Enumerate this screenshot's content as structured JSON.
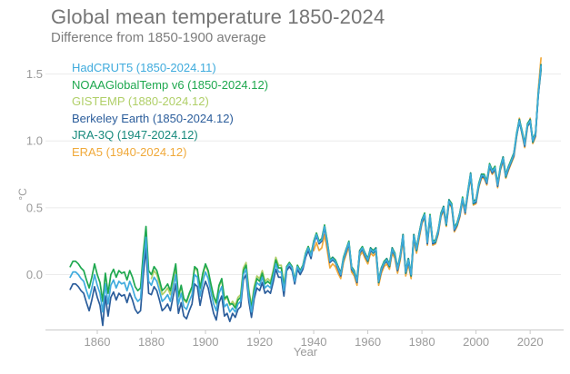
{
  "header": {
    "title": "Global mean temperature 1850-2024",
    "subtitle": "Difference from 1850-1900 average"
  },
  "colors": {
    "background": "#ffffff",
    "title_text": "#757575",
    "axis_text": "#9b9b9b",
    "gridline": "#ebebeb",
    "axis_line": "#c9c9c9"
  },
  "chart_data": {
    "type": "line",
    "title": "Global mean temperature 1850-2024",
    "subtitle": "Difference from 1850-1900 average",
    "xlabel": "Year",
    "ylabel": "°C",
    "grid": "horizontal",
    "legend_position": "top-left",
    "xlim": [
      1850,
      2024
    ],
    "ylim": [
      -0.42,
      1.65
    ],
    "x_ticks": [
      1860,
      1880,
      1900,
      1920,
      1940,
      1960,
      1980,
      2000,
      2020
    ],
    "y_ticks": [
      {
        "label": "0.0",
        "value": 0.0
      },
      {
        "label": "0.5",
        "value": 0.5
      },
      {
        "label": "1.0",
        "value": 1.0
      },
      {
        "label": "1.5",
        "value": 1.5
      }
    ],
    "draw_order": [
      "ERA5",
      "GISTEMP",
      "Berkeley Earth",
      "NOAAGlobalTemp v6",
      "JRA-3Q",
      "HadCRUT5"
    ],
    "series": [
      {
        "name": "HadCRUT5",
        "legend": "HadCRUT5 (1850-2024.11)",
        "color": "#3fabdd",
        "start_year": 1850,
        "values": [
          -0.02,
          0.02,
          0.02,
          0.0,
          -0.03,
          -0.05,
          -0.12,
          -0.18,
          -0.1,
          0.0,
          -0.08,
          -0.14,
          -0.28,
          -0.07,
          -0.22,
          -0.08,
          -0.04,
          -0.1,
          -0.05,
          -0.07,
          -0.06,
          -0.12,
          -0.05,
          -0.1,
          -0.17,
          -0.2,
          -0.18,
          0.08,
          0.28,
          -0.05,
          -0.08,
          -0.02,
          -0.05,
          -0.12,
          -0.2,
          -0.18,
          -0.15,
          -0.2,
          -0.1,
          0.0,
          -0.22,
          -0.14,
          -0.24,
          -0.26,
          -0.2,
          -0.15,
          0.0,
          -0.02,
          -0.16,
          -0.05,
          0.02,
          -0.03,
          -0.13,
          -0.22,
          -0.27,
          -0.14,
          -0.09,
          -0.24,
          -0.22,
          -0.28,
          -0.25,
          -0.28,
          -0.22,
          -0.2,
          0.0,
          0.04,
          -0.16,
          -0.28,
          -0.14,
          -0.06,
          -0.08,
          -0.02,
          -0.1,
          -0.08,
          -0.1,
          -0.02,
          0.08,
          0.02,
          0.02,
          -0.12,
          0.05,
          0.08,
          0.05,
          -0.05,
          0.06,
          0.02,
          0.06,
          0.15,
          0.2,
          0.14,
          0.24,
          0.3,
          0.24,
          0.26,
          0.36,
          0.24,
          0.1,
          0.12,
          0.1,
          0.05,
          0.0,
          0.12,
          0.18,
          0.24,
          0.05,
          0.02,
          -0.05,
          0.17,
          0.2,
          0.15,
          0.11,
          0.19,
          0.17,
          0.19,
          -0.05,
          0.04,
          0.09,
          0.11,
          0.07,
          0.19,
          0.15,
          0.04,
          0.14,
          0.29,
          0.02,
          0.11,
          0.0,
          0.29,
          0.19,
          0.3,
          0.4,
          0.45,
          0.24,
          0.44,
          0.24,
          0.25,
          0.32,
          0.45,
          0.5,
          0.38,
          0.55,
          0.52,
          0.34,
          0.38,
          0.45,
          0.57,
          0.47,
          0.62,
          0.75,
          0.54,
          0.55,
          0.67,
          0.74,
          0.74,
          0.69,
          0.82,
          0.77,
          0.8,
          0.67,
          0.8,
          0.87,
          0.74,
          0.8,
          0.85,
          0.9,
          1.05,
          1.15,
          1.07,
          0.97,
          1.12,
          1.15,
          1.0,
          1.05,
          1.35,
          1.56
        ]
      },
      {
        "name": "NOAAGlobalTemp v6",
        "legend": "NOAAGlobalTemp v6 (1850-2024.12)",
        "color": "#1fa84f",
        "start_year": 1850,
        "values": [
          0.06,
          0.1,
          0.1,
          0.08,
          0.05,
          0.03,
          -0.04,
          -0.1,
          -0.02,
          0.08,
          0.0,
          -0.06,
          -0.2,
          0.01,
          -0.14,
          0.0,
          0.04,
          -0.02,
          0.03,
          0.01,
          0.02,
          -0.04,
          0.03,
          -0.02,
          -0.09,
          -0.12,
          -0.1,
          0.16,
          0.36,
          0.03,
          0.0,
          0.06,
          0.03,
          -0.04,
          -0.12,
          -0.1,
          -0.07,
          -0.12,
          -0.02,
          0.08,
          -0.16,
          -0.08,
          -0.18,
          -0.2,
          -0.14,
          -0.09,
          0.06,
          0.04,
          -0.1,
          0.01,
          0.08,
          0.03,
          -0.07,
          -0.16,
          -0.21,
          -0.08,
          -0.03,
          -0.18,
          -0.16,
          -0.22,
          -0.22,
          -0.25,
          -0.19,
          -0.17,
          0.03,
          0.07,
          -0.13,
          -0.25,
          -0.11,
          -0.03,
          -0.05,
          0.01,
          -0.07,
          -0.05,
          -0.07,
          0.01,
          0.11,
          0.05,
          0.05,
          -0.09,
          0.06,
          0.09,
          0.06,
          -0.04,
          0.07,
          0.03,
          0.07,
          0.16,
          0.21,
          0.15,
          0.25,
          0.31,
          0.25,
          0.27,
          0.37,
          0.25,
          0.11,
          0.13,
          0.11,
          0.06,
          0.01,
          0.13,
          0.19,
          0.25,
          0.06,
          0.03,
          -0.04,
          0.18,
          0.21,
          0.16,
          0.12,
          0.2,
          0.18,
          0.2,
          -0.04,
          0.05,
          0.1,
          0.12,
          0.08,
          0.2,
          0.16,
          0.05,
          0.15,
          0.3,
          0.03,
          0.12,
          0.01,
          0.3,
          0.2,
          0.31,
          0.41,
          0.46,
          0.25,
          0.45,
          0.25,
          0.26,
          0.33,
          0.46,
          0.51,
          0.39,
          0.56,
          0.53,
          0.35,
          0.39,
          0.46,
          0.58,
          0.48,
          0.63,
          0.76,
          0.55,
          0.56,
          0.68,
          0.75,
          0.75,
          0.7,
          0.83,
          0.78,
          0.81,
          0.68,
          0.81,
          0.88,
          0.75,
          0.81,
          0.86,
          0.91,
          1.06,
          1.16,
          1.08,
          0.98,
          1.13,
          1.16,
          1.01,
          1.06,
          1.36,
          1.54
        ]
      },
      {
        "name": "GISTEMP",
        "legend": "GISTEMP (1880-2024.12)",
        "color": "#b0cf68",
        "start_year": 1880,
        "values": [
          -0.03,
          0.03,
          0.0,
          -0.07,
          -0.15,
          -0.13,
          -0.1,
          -0.15,
          -0.05,
          0.05,
          -0.17,
          -0.09,
          -0.19,
          -0.21,
          -0.15,
          -0.1,
          0.05,
          0.03,
          -0.11,
          0.0,
          0.07,
          0.02,
          -0.08,
          -0.17,
          -0.22,
          -0.09,
          -0.04,
          -0.19,
          -0.17,
          -0.23,
          -0.2,
          -0.23,
          -0.17,
          -0.15,
          0.05,
          0.09,
          -0.11,
          -0.23,
          -0.09,
          -0.01,
          -0.03,
          0.03,
          -0.05,
          -0.03,
          -0.05,
          0.03,
          0.13,
          0.07,
          0.07,
          -0.07,
          0.06,
          0.09,
          0.06,
          -0.04,
          0.07,
          0.03,
          0.07,
          0.16,
          0.21,
          0.15,
          0.25,
          0.31,
          0.25,
          0.27,
          0.37,
          0.25,
          0.11,
          0.13,
          0.11,
          0.06,
          0.0,
          0.12,
          0.18,
          0.24,
          0.05,
          0.02,
          -0.05,
          0.17,
          0.2,
          0.15,
          0.11,
          0.19,
          0.17,
          0.19,
          -0.05,
          0.04,
          0.09,
          0.11,
          0.07,
          0.19,
          0.15,
          0.04,
          0.14,
          0.29,
          0.02,
          0.11,
          0.0,
          0.29,
          0.19,
          0.3,
          0.4,
          0.45,
          0.24,
          0.44,
          0.24,
          0.25,
          0.32,
          0.45,
          0.5,
          0.38,
          0.55,
          0.52,
          0.34,
          0.38,
          0.45,
          0.57,
          0.47,
          0.62,
          0.75,
          0.54,
          0.55,
          0.67,
          0.74,
          0.74,
          0.69,
          0.82,
          0.77,
          0.8,
          0.67,
          0.8,
          0.87,
          0.74,
          0.8,
          0.85,
          0.9,
          1.05,
          1.15,
          1.07,
          0.97,
          1.12,
          1.15,
          1.0,
          1.05,
          1.35,
          1.55
        ]
      },
      {
        "name": "Berkeley Earth",
        "legend": "Berkeley Earth (1850-2024.12)",
        "color": "#2b5d9b",
        "start_year": 1850,
        "values": [
          -0.11,
          -0.07,
          -0.07,
          -0.09,
          -0.12,
          -0.14,
          -0.21,
          -0.27,
          -0.19,
          -0.09,
          -0.17,
          -0.23,
          -0.38,
          -0.16,
          -0.31,
          -0.17,
          -0.13,
          -0.19,
          -0.14,
          -0.16,
          -0.15,
          -0.21,
          -0.14,
          -0.19,
          -0.26,
          -0.29,
          -0.27,
          -0.01,
          0.2,
          -0.14,
          -0.15,
          -0.09,
          -0.12,
          -0.19,
          -0.27,
          -0.25,
          -0.22,
          -0.27,
          -0.17,
          -0.07,
          -0.29,
          -0.21,
          -0.31,
          -0.33,
          -0.27,
          -0.22,
          -0.07,
          -0.09,
          -0.23,
          -0.12,
          -0.05,
          -0.1,
          -0.2,
          -0.29,
          -0.34,
          -0.21,
          -0.16,
          -0.31,
          -0.29,
          -0.35,
          -0.29,
          -0.32,
          -0.26,
          -0.24,
          -0.04,
          0.0,
          -0.2,
          -0.32,
          -0.18,
          -0.1,
          -0.12,
          -0.06,
          -0.14,
          -0.12,
          -0.14,
          -0.06,
          0.04,
          -0.02,
          -0.02,
          -0.16,
          0.03,
          0.06,
          0.03,
          -0.07,
          0.04,
          0.0,
          0.04,
          0.13,
          0.18,
          0.12,
          0.23,
          0.29,
          0.23,
          0.25,
          0.35,
          0.23,
          0.09,
          0.11,
          0.09,
          0.04,
          -0.01,
          0.11,
          0.17,
          0.23,
          0.04,
          0.01,
          -0.06,
          0.16,
          0.19,
          0.14,
          0.1,
          0.18,
          0.16,
          0.18,
          -0.06,
          0.03,
          0.08,
          0.1,
          0.06,
          0.18,
          0.14,
          0.03,
          0.13,
          0.28,
          0.01,
          0.1,
          -0.01,
          0.28,
          0.18,
          0.29,
          0.39,
          0.44,
          0.23,
          0.43,
          0.23,
          0.24,
          0.31,
          0.44,
          0.49,
          0.37,
          0.54,
          0.51,
          0.33,
          0.37,
          0.44,
          0.56,
          0.46,
          0.61,
          0.74,
          0.53,
          0.54,
          0.66,
          0.73,
          0.73,
          0.68,
          0.81,
          0.76,
          0.79,
          0.66,
          0.79,
          0.86,
          0.73,
          0.79,
          0.84,
          0.89,
          1.04,
          1.14,
          1.06,
          0.96,
          1.11,
          1.14,
          0.99,
          1.04,
          1.34,
          1.53
        ]
      },
      {
        "name": "JRA-3Q",
        "legend": "JRA-3Q (1947-2024.12)",
        "color": "#188a7d",
        "start_year": 1947,
        "values": [
          0.13,
          0.09,
          0.06,
          0.01,
          0.11,
          0.19,
          0.23,
          0.06,
          0.01,
          -0.04,
          0.18,
          0.19,
          0.16,
          0.1,
          0.2,
          0.16,
          0.2,
          -0.06,
          0.05,
          0.08,
          0.12,
          0.06,
          0.2,
          0.14,
          0.05,
          0.13,
          0.3,
          0.01,
          0.12,
          -0.01,
          0.3,
          0.18,
          0.31,
          0.41,
          0.44,
          0.25,
          0.43,
          0.25,
          0.24,
          0.33,
          0.44,
          0.51,
          0.37,
          0.56,
          0.51,
          0.35,
          0.37,
          0.46,
          0.56,
          0.48,
          0.61,
          0.76,
          0.53,
          0.56,
          0.66,
          0.75,
          0.73,
          0.7,
          0.81,
          0.78,
          0.79,
          0.68,
          0.79,
          0.88,
          0.73,
          0.81,
          0.84,
          0.91,
          1.04,
          1.16,
          1.06,
          0.98,
          1.11,
          1.16,
          0.99,
          1.06,
          1.34,
          1.57
        ]
      },
      {
        "name": "ERA5",
        "legend": "ERA5 (1940-2024.12)",
        "color": "#f0a93a",
        "start_year": 1940,
        "values": [
          0.18,
          0.24,
          0.18,
          0.2,
          0.3,
          0.18,
          0.05,
          0.08,
          0.06,
          0.01,
          -0.03,
          0.09,
          0.15,
          0.21,
          0.02,
          -0.01,
          -0.08,
          0.14,
          0.17,
          0.12,
          0.08,
          0.16,
          0.14,
          0.16,
          -0.08,
          0.01,
          0.06,
          0.08,
          0.04,
          0.16,
          0.12,
          0.01,
          0.11,
          0.26,
          -0.01,
          0.08,
          -0.03,
          0.26,
          0.16,
          0.27,
          0.38,
          0.43,
          0.22,
          0.42,
          0.22,
          0.23,
          0.3,
          0.43,
          0.48,
          0.36,
          0.53,
          0.5,
          0.32,
          0.36,
          0.43,
          0.55,
          0.45,
          0.6,
          0.73,
          0.52,
          0.53,
          0.65,
          0.72,
          0.72,
          0.67,
          0.8,
          0.75,
          0.78,
          0.65,
          0.78,
          0.85,
          0.72,
          0.78,
          0.83,
          0.88,
          1.03,
          1.17,
          1.05,
          0.95,
          1.1,
          1.17,
          0.98,
          1.03,
          1.38,
          1.62
        ]
      }
    ]
  }
}
